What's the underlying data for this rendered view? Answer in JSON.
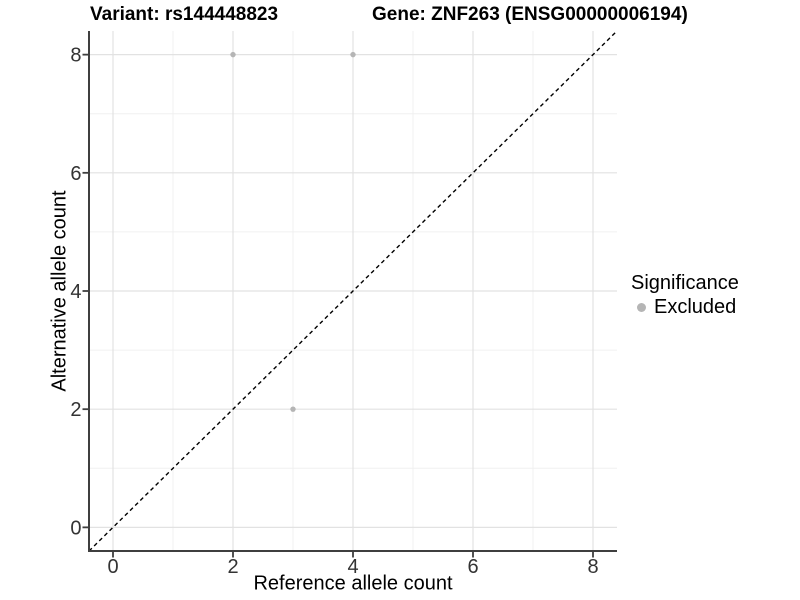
{
  "titles": {
    "left": "Variant: rs144448823",
    "right": "Gene: ZNF263 (ENSG00000006194)"
  },
  "axes": {
    "x_label": "Reference allele count",
    "y_label": "Alternative allele count"
  },
  "legend": {
    "title": "Significance",
    "items": [
      {
        "label": "Excluded",
        "color": "#b5b5b5"
      }
    ]
  },
  "colors": {
    "point": "#b5b5b5",
    "grid_major": "#e2e2e2",
    "grid_minor": "#f0f0f0",
    "axis_line": "#3f3f3f",
    "tick_mark": "#3f3f3f",
    "tick_label": "#333333",
    "reference_line": "#000000",
    "background": "#ffffff"
  },
  "chart_data": {
    "type": "scatter",
    "title": "Variant: rs144448823   |   Gene: ZNF263 (ENSG00000006194)",
    "xlabel": "Reference allele count",
    "ylabel": "Alternative allele count",
    "xlim": [
      -0.4,
      8.4
    ],
    "ylim": [
      -0.4,
      8.4
    ],
    "x_major_ticks": [
      0,
      2,
      4,
      6,
      8
    ],
    "y_major_ticks": [
      0,
      2,
      4,
      6,
      8
    ],
    "x_minor_ticks": [
      1,
      3,
      5,
      7
    ],
    "y_minor_ticks": [
      1,
      3,
      5,
      7
    ],
    "grid": "major+minor",
    "legend_position": "right",
    "series": [
      {
        "name": "Excluded",
        "color": "#b5b5b5",
        "points": [
          [
            2,
            8
          ],
          [
            4,
            8
          ],
          [
            3,
            2
          ]
        ]
      }
    ],
    "reference_line": {
      "type": "identity",
      "style": "dashed",
      "color": "#000000",
      "from": [
        -0.4,
        -0.4
      ],
      "to": [
        8.4,
        8.4
      ]
    }
  }
}
